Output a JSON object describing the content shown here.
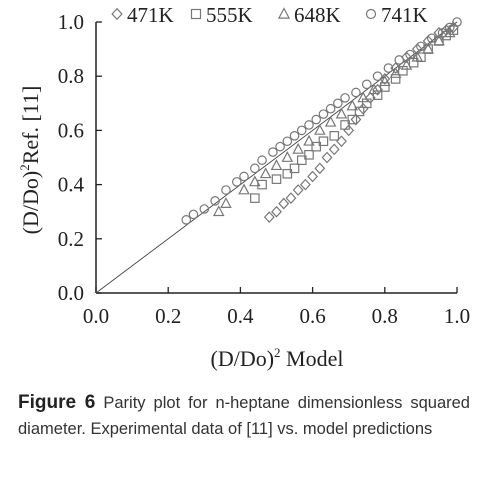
{
  "chart_data": {
    "type": "scatter",
    "xlabel": "(D/Do)",
    "xlabel_exp": "2",
    "xlabel_rest": " Model",
    "ylabel": "(D/Do)",
    "ylabel_exp": "2",
    "ylabel_rest": "Ref. [11]",
    "xlim": [
      0,
      1
    ],
    "ylim": [
      0,
      1
    ],
    "xticks": [
      "0.0",
      "0.2",
      "0.4",
      "0.6",
      "0.8",
      "1.0"
    ],
    "yticks": [
      "0.0",
      "0.2",
      "0.4",
      "0.6",
      "0.8",
      "1.0"
    ],
    "legend_position": "top",
    "grid": false,
    "reference_line": {
      "from": [
        0,
        0
      ],
      "to": [
        1,
        1
      ]
    },
    "series": [
      {
        "name": "471K",
        "marker": "diamond",
        "points": [
          [
            0.48,
            0.28
          ],
          [
            0.5,
            0.3
          ],
          [
            0.52,
            0.33
          ],
          [
            0.54,
            0.35
          ],
          [
            0.56,
            0.38
          ],
          [
            0.58,
            0.4
          ],
          [
            0.6,
            0.43
          ],
          [
            0.62,
            0.46
          ],
          [
            0.64,
            0.5
          ],
          [
            0.66,
            0.53
          ],
          [
            0.68,
            0.56
          ],
          [
            0.7,
            0.6
          ],
          [
            0.72,
            0.64
          ],
          [
            0.74,
            0.68
          ],
          [
            0.76,
            0.72
          ],
          [
            0.78,
            0.75
          ],
          [
            0.8,
            0.79
          ],
          [
            0.83,
            0.83
          ],
          [
            0.86,
            0.87
          ],
          [
            0.89,
            0.9
          ],
          [
            0.92,
            0.93
          ],
          [
            0.95,
            0.96
          ],
          [
            0.97,
            0.97
          ],
          [
            0.99,
            0.98
          ]
        ]
      },
      {
        "name": "555K",
        "marker": "square",
        "points": [
          [
            0.44,
            0.35
          ],
          [
            0.46,
            0.4
          ],
          [
            0.5,
            0.42
          ],
          [
            0.53,
            0.44
          ],
          [
            0.55,
            0.46
          ],
          [
            0.57,
            0.49
          ],
          [
            0.59,
            0.51
          ],
          [
            0.61,
            0.54
          ],
          [
            0.63,
            0.56
          ],
          [
            0.66,
            0.58
          ],
          [
            0.69,
            0.62
          ],
          [
            0.71,
            0.64
          ],
          [
            0.73,
            0.67
          ],
          [
            0.75,
            0.7
          ],
          [
            0.78,
            0.73
          ],
          [
            0.8,
            0.76
          ],
          [
            0.83,
            0.79
          ],
          [
            0.85,
            0.82
          ],
          [
            0.88,
            0.85
          ],
          [
            0.9,
            0.87
          ],
          [
            0.92,
            0.9
          ],
          [
            0.95,
            0.93
          ],
          [
            0.97,
            0.95
          ],
          [
            0.99,
            0.97
          ]
        ]
      },
      {
        "name": "648K",
        "marker": "triangle",
        "points": [
          [
            0.34,
            0.3
          ],
          [
            0.36,
            0.33
          ],
          [
            0.41,
            0.38
          ],
          [
            0.44,
            0.41
          ],
          [
            0.47,
            0.44
          ],
          [
            0.5,
            0.47
          ],
          [
            0.53,
            0.5
          ],
          [
            0.56,
            0.53
          ],
          [
            0.59,
            0.56
          ],
          [
            0.62,
            0.6
          ],
          [
            0.65,
            0.63
          ],
          [
            0.68,
            0.66
          ],
          [
            0.71,
            0.69
          ],
          [
            0.74,
            0.72
          ],
          [
            0.77,
            0.75
          ],
          [
            0.8,
            0.78
          ],
          [
            0.83,
            0.81
          ],
          [
            0.86,
            0.84
          ],
          [
            0.89,
            0.87
          ],
          [
            0.92,
            0.9
          ],
          [
            0.95,
            0.93
          ],
          [
            0.98,
            0.96
          ]
        ]
      },
      {
        "name": "741K",
        "marker": "circle",
        "points": [
          [
            0.25,
            0.27
          ],
          [
            0.27,
            0.29
          ],
          [
            0.3,
            0.31
          ],
          [
            0.33,
            0.34
          ],
          [
            0.36,
            0.38
          ],
          [
            0.39,
            0.41
          ],
          [
            0.41,
            0.43
          ],
          [
            0.44,
            0.46
          ],
          [
            0.46,
            0.49
          ],
          [
            0.49,
            0.52
          ],
          [
            0.51,
            0.54
          ],
          [
            0.53,
            0.56
          ],
          [
            0.55,
            0.58
          ],
          [
            0.57,
            0.6
          ],
          [
            0.59,
            0.62
          ],
          [
            0.61,
            0.64
          ],
          [
            0.63,
            0.66
          ],
          [
            0.65,
            0.68
          ],
          [
            0.67,
            0.7
          ],
          [
            0.69,
            0.72
          ],
          [
            0.72,
            0.74
          ],
          [
            0.75,
            0.77
          ],
          [
            0.78,
            0.8
          ],
          [
            0.81,
            0.83
          ],
          [
            0.84,
            0.86
          ],
          [
            0.87,
            0.88
          ],
          [
            0.9,
            0.91
          ],
          [
            0.93,
            0.94
          ],
          [
            0.96,
            0.96
          ],
          [
            0.98,
            0.98
          ],
          [
            1.0,
            1.0
          ]
        ]
      }
    ]
  },
  "caption": {
    "label": "Figure 6",
    "text": " Parity plot for n-heptane dimensionless squared diameter. Experimental data of [11] vs. model predictions"
  }
}
